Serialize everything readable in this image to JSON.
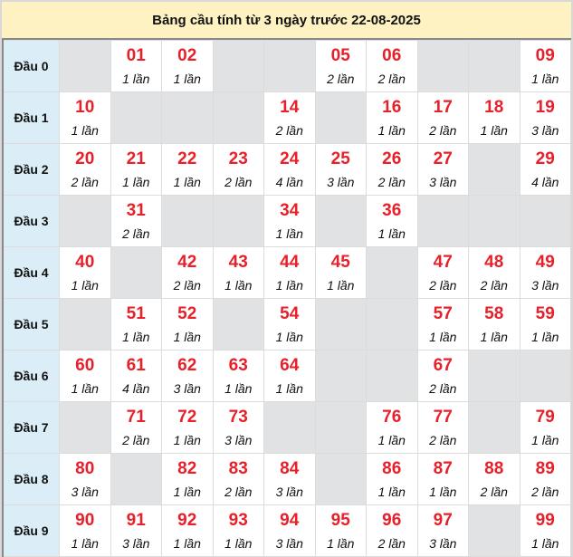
{
  "title": "Bảng cầu tính từ 3 ngày trước 22-08-2025",
  "colors": {
    "number": "#e8202a",
    "header_bg": "#fff2c2",
    "row_label_bg": "#dbeef8",
    "empty_bg": "#e1e2e4"
  },
  "rows": [
    {
      "label": "Đầu 0",
      "cells": [
        null,
        {
          "num": "01",
          "count": "1 lần"
        },
        {
          "num": "02",
          "count": "1 lần"
        },
        null,
        null,
        {
          "num": "05",
          "count": "2 lần"
        },
        {
          "num": "06",
          "count": "2 lần"
        },
        null,
        null,
        {
          "num": "09",
          "count": "1 lần"
        }
      ]
    },
    {
      "label": "Đầu 1",
      "cells": [
        {
          "num": "10",
          "count": "1 lần"
        },
        null,
        null,
        null,
        {
          "num": "14",
          "count": "2 lần"
        },
        null,
        {
          "num": "16",
          "count": "1 lần"
        },
        {
          "num": "17",
          "count": "2 lần"
        },
        {
          "num": "18",
          "count": "1 lần"
        },
        {
          "num": "19",
          "count": "3 lần"
        }
      ]
    },
    {
      "label": "Đầu 2",
      "cells": [
        {
          "num": "20",
          "count": "2 lần"
        },
        {
          "num": "21",
          "count": "1 lần"
        },
        {
          "num": "22",
          "count": "1 lần"
        },
        {
          "num": "23",
          "count": "2 lần"
        },
        {
          "num": "24",
          "count": "4 lần"
        },
        {
          "num": "25",
          "count": "3 lần"
        },
        {
          "num": "26",
          "count": "2 lần"
        },
        {
          "num": "27",
          "count": "3 lần"
        },
        null,
        {
          "num": "29",
          "count": "4 lần"
        }
      ]
    },
    {
      "label": "Đầu 3",
      "cells": [
        null,
        {
          "num": "31",
          "count": "2 lần"
        },
        null,
        null,
        {
          "num": "34",
          "count": "1 lần"
        },
        null,
        {
          "num": "36",
          "count": "1 lần"
        },
        null,
        null,
        null
      ]
    },
    {
      "label": "Đầu 4",
      "cells": [
        {
          "num": "40",
          "count": "1 lần"
        },
        null,
        {
          "num": "42",
          "count": "2 lần"
        },
        {
          "num": "43",
          "count": "1 lần"
        },
        {
          "num": "44",
          "count": "1 lần"
        },
        {
          "num": "45",
          "count": "1 lần"
        },
        null,
        {
          "num": "47",
          "count": "2 lần"
        },
        {
          "num": "48",
          "count": "2 lần"
        },
        {
          "num": "49",
          "count": "3 lần"
        }
      ]
    },
    {
      "label": "Đầu 5",
      "cells": [
        null,
        {
          "num": "51",
          "count": "1 lần"
        },
        {
          "num": "52",
          "count": "1 lần"
        },
        null,
        {
          "num": "54",
          "count": "1 lần"
        },
        null,
        null,
        {
          "num": "57",
          "count": "1 lần"
        },
        {
          "num": "58",
          "count": "1 lần"
        },
        {
          "num": "59",
          "count": "1 lần"
        }
      ]
    },
    {
      "label": "Đầu 6",
      "cells": [
        {
          "num": "60",
          "count": "1 lần"
        },
        {
          "num": "61",
          "count": "4 lần"
        },
        {
          "num": "62",
          "count": "3 lần"
        },
        {
          "num": "63",
          "count": "1 lần"
        },
        {
          "num": "64",
          "count": "1 lần"
        },
        null,
        null,
        {
          "num": "67",
          "count": "2 lần"
        },
        null,
        null
      ]
    },
    {
      "label": "Đầu 7",
      "cells": [
        null,
        {
          "num": "71",
          "count": "2 lần"
        },
        {
          "num": "72",
          "count": "1 lần"
        },
        {
          "num": "73",
          "count": "3 lần"
        },
        null,
        null,
        {
          "num": "76",
          "count": "1 lần"
        },
        {
          "num": "77",
          "count": "2 lần"
        },
        null,
        {
          "num": "79",
          "count": "1 lần"
        }
      ]
    },
    {
      "label": "Đầu 8",
      "cells": [
        {
          "num": "80",
          "count": "3 lần"
        },
        null,
        {
          "num": "82",
          "count": "1 lần"
        },
        {
          "num": "83",
          "count": "2 lần"
        },
        {
          "num": "84",
          "count": "3 lần"
        },
        null,
        {
          "num": "86",
          "count": "1 lần"
        },
        {
          "num": "87",
          "count": "1 lần"
        },
        {
          "num": "88",
          "count": "2 lần"
        },
        {
          "num": "89",
          "count": "2 lần"
        }
      ]
    },
    {
      "label": "Đầu 9",
      "cells": [
        {
          "num": "90",
          "count": "1 lần"
        },
        {
          "num": "91",
          "count": "3 lần"
        },
        {
          "num": "92",
          "count": "1 lần"
        },
        {
          "num": "93",
          "count": "1 lần"
        },
        {
          "num": "94",
          "count": "3 lần"
        },
        {
          "num": "95",
          "count": "1 lần"
        },
        {
          "num": "96",
          "count": "2 lần"
        },
        {
          "num": "97",
          "count": "3 lần"
        },
        null,
        {
          "num": "99",
          "count": "1 lần"
        }
      ]
    }
  ]
}
